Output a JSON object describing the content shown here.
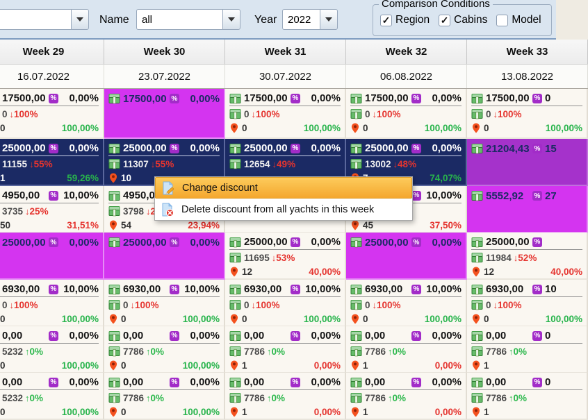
{
  "toolbar": {
    "filter_combo_value": "",
    "name_label": "Name",
    "name_value": "all",
    "year_label": "Year",
    "year_value": "2022",
    "comparison_group": {
      "title": "Comparison Conditions",
      "checkboxes": [
        {
          "label": "Region",
          "checked": true
        },
        {
          "label": "Cabins",
          "checked": true
        },
        {
          "label": "Model",
          "checked": false
        }
      ]
    }
  },
  "week_columns": [
    {
      "week": "Week 29",
      "date": "16.07.2022"
    },
    {
      "week": "Week 30",
      "date": "23.07.2022"
    },
    {
      "week": "Week 31",
      "date": "30.07.2022"
    },
    {
      "week": "Week 32",
      "date": "06.08.2022"
    },
    {
      "week": "Week 33",
      "date": "13.08.2022"
    }
  ],
  "context_menu": {
    "items": [
      {
        "label": "Change discount",
        "icon": "change-discount-icon",
        "highlighted": true
      },
      {
        "label": "Delete discount from all yachts in this week",
        "icon": "delete-discount-icon",
        "highlighted": false
      }
    ]
  },
  "colors": {
    "magenta_cell": "#D434F0",
    "selected_row_navy": "#1B2A64",
    "selected_magenta_cell": "#A532CB",
    "cell_bg": "#FAF7F1",
    "accent_green": "#28B44C",
    "accent_red": "#E5342F",
    "badge_purple": "#A22CC8",
    "menu_highlight": "#F4A72E",
    "toolbar_bg": "#DAE5F0"
  },
  "grid": {
    "rows": [
      {
        "cells": [
          {
            "v": "normal",
            "price": "17500,00",
            "pct": "0,00%",
            "l2": {
              "c": "0",
              "d": "down",
              "p": "100%"
            },
            "l3": {
              "c": "0",
              "p": "100,00%",
              "pc": "green"
            }
          },
          {
            "v": "magenta",
            "price": "17500,00",
            "pct": "0,00%"
          },
          {
            "v": "normal",
            "price": "17500,00",
            "pct": "0,00%",
            "l2": {
              "c": "0",
              "d": "down",
              "p": "100%"
            },
            "l3": {
              "c": "0",
              "p": "100,00%",
              "pc": "green"
            }
          },
          {
            "v": "normal",
            "price": "17500,00",
            "pct": "0,00%",
            "l2": {
              "c": "0",
              "d": "down",
              "p": "100%"
            },
            "l3": {
              "c": "0",
              "p": "100,00%",
              "pc": "green"
            }
          },
          {
            "v": "normal",
            "cut": true,
            "price": "17500,00",
            "pct": "0",
            "l2": {
              "c": "0",
              "d": "down",
              "p": "100%"
            },
            "l3": {
              "c": "0",
              "p": "100,00%",
              "pc": "green"
            }
          }
        ]
      },
      {
        "cells": [
          {
            "v": "navy",
            "price": "25000,00",
            "pct": "0,00%",
            "l2": {
              "c": "11155",
              "d": "down",
              "p": "55%"
            },
            "l3": {
              "c": "1",
              "p": "59,26%",
              "pc": "green"
            }
          },
          {
            "v": "navy",
            "price": "25000,00",
            "pct": "0,00%",
            "l2": {
              "c": "11307",
              "d": "down",
              "p": "55%"
            },
            "l3": {
              "c": "10",
              "p": "",
              "pc": "green"
            }
          },
          {
            "v": "navy",
            "price": "25000,00",
            "pct": "0,00%",
            "l2": {
              "c": "12654",
              "d": "down",
              "p": "49%"
            }
          },
          {
            "v": "navy",
            "price": "25000,00",
            "pct": "0,00%",
            "l2": {
              "c": "13002",
              "d": "down",
              "p": "48%"
            },
            "l3": {
              "c": "7",
              "p": "74,07%",
              "pc": "green"
            }
          },
          {
            "v": "violet",
            "cut": true,
            "price": "21204,43",
            "pct": "15"
          }
        ]
      },
      {
        "cells": [
          {
            "v": "normal",
            "price": "4950,00",
            "pct": "10,00%",
            "l2": {
              "c": "3735",
              "d": "down",
              "p": "25%"
            },
            "l3": {
              "c": "50",
              "p": "31,51%",
              "pc": "red"
            }
          },
          {
            "v": "normal",
            "price": "4950,00",
            "pct": "",
            "l2": {
              "c": "3798",
              "d": "down",
              "p": "2"
            },
            "l3": {
              "c": "54",
              "p": "23,94%",
              "pc": "red"
            }
          },
          {
            "v": "normal",
            "price": "",
            "pct": ""
          },
          {
            "v": "normal",
            "price": "",
            "pct": "10,00%",
            "l3": {
              "c": "45",
              "p": "37,50%",
              "pc": "red"
            }
          },
          {
            "v": "magenta",
            "cut": true,
            "price": "5552,92",
            "pct": "27"
          }
        ]
      },
      {
        "cells": [
          {
            "v": "magenta",
            "price": "25000,00",
            "pct": "0,00%"
          },
          {
            "v": "magenta",
            "price": "25000,00",
            "pct": "0,00%"
          },
          {
            "v": "normal",
            "price": "25000,00",
            "pct": "0,00%",
            "l2": {
              "c": "11695",
              "d": "down",
              "p": "53%"
            },
            "l3": {
              "c": "12",
              "p": "40,00%",
              "pc": "red"
            }
          },
          {
            "v": "magenta",
            "price": "25000,00",
            "pct": "0,00%"
          },
          {
            "v": "normal",
            "cut": true,
            "price": "25000,00",
            "pct": "",
            "l2": {
              "c": "11984",
              "d": "down",
              "p": "52%"
            },
            "l3": {
              "c": "12",
              "p": "40,00%",
              "pc": "red"
            }
          }
        ]
      },
      {
        "cells": [
          {
            "v": "normal",
            "price": "6930,00",
            "pct": "10,00%",
            "l2": {
              "c": "0",
              "d": "down",
              "p": "100%"
            },
            "l3": {
              "c": "0",
              "p": "100,00%",
              "pc": "green"
            }
          },
          {
            "v": "normal",
            "price": "6930,00",
            "pct": "10,00%",
            "l2": {
              "c": "0",
              "d": "down",
              "p": "100%"
            },
            "l3": {
              "c": "0",
              "p": "100,00%",
              "pc": "green"
            }
          },
          {
            "v": "normal",
            "price": "6930,00",
            "pct": "10,00%",
            "l2": {
              "c": "0",
              "d": "down",
              "p": "100%"
            },
            "l3": {
              "c": "0",
              "p": "100,00%",
              "pc": "green"
            }
          },
          {
            "v": "normal",
            "price": "6930,00",
            "pct": "10,00%",
            "l2": {
              "c": "0",
              "d": "down",
              "p": "100%"
            },
            "l3": {
              "c": "0",
              "p": "100,00%",
              "pc": "green"
            }
          },
          {
            "v": "normal",
            "cut": true,
            "price": "6930,00",
            "pct": "10",
            "l2": {
              "c": "0",
              "d": "down",
              "p": "100%"
            },
            "l3": {
              "c": "0",
              "p": "100,00%",
              "pc": "green"
            }
          }
        ]
      },
      {
        "cells": [
          {
            "v": "normal",
            "price": "0,00",
            "pct": "0,00%",
            "l2": {
              "c": "5232",
              "d": "up",
              "p": "0%"
            },
            "l3": {
              "c": "0",
              "p": "100,00%",
              "pc": "green"
            }
          },
          {
            "v": "normal",
            "price": "0,00",
            "pct": "0,00%",
            "l2": {
              "c": "7786",
              "d": "up",
              "p": "0%"
            },
            "l3": {
              "c": "0",
              "p": "100,00%",
              "pc": "green"
            }
          },
          {
            "v": "normal",
            "price": "0,00",
            "pct": "0,00%",
            "l2": {
              "c": "7786",
              "d": "up",
              "p": "0%"
            },
            "l3": {
              "c": "1",
              "p": "0,00%",
              "pc": "red"
            }
          },
          {
            "v": "normal",
            "price": "0,00",
            "pct": "0,00%",
            "l2": {
              "c": "7786",
              "d": "up",
              "p": "0%"
            },
            "l3": {
              "c": "1",
              "p": "0,00%",
              "pc": "red"
            }
          },
          {
            "v": "normal",
            "cut": true,
            "price": "0,00",
            "pct": "0",
            "l2": {
              "c": "7786",
              "d": "up",
              "p": "0%"
            },
            "l3": {
              "c": "1",
              "p": "",
              "pc": "red"
            }
          }
        ]
      },
      {
        "cells": [
          {
            "v": "normal",
            "price": "0,00",
            "pct": "0,00%",
            "l2": {
              "c": "5232",
              "d": "up",
              "p": "0%"
            },
            "l3": {
              "c": "0",
              "p": "100,00%",
              "pc": "green"
            }
          },
          {
            "v": "normal",
            "price": "0,00",
            "pct": "0,00%",
            "l2": {
              "c": "7786",
              "d": "up",
              "p": "0%"
            },
            "l3": {
              "c": "0",
              "p": "100,00%",
              "pc": "green"
            }
          },
          {
            "v": "normal",
            "price": "0,00",
            "pct": "0,00%",
            "l2": {
              "c": "7786",
              "d": "up",
              "p": "0%"
            },
            "l3": {
              "c": "1",
              "p": "0,00%",
              "pc": "red"
            }
          },
          {
            "v": "normal",
            "price": "0,00",
            "pct": "0,00%",
            "l2": {
              "c": "7786",
              "d": "up",
              "p": "0%"
            },
            "l3": {
              "c": "1",
              "p": "0,00%",
              "pc": "red"
            }
          },
          {
            "v": "normal",
            "cut": true,
            "price": "0,00",
            "pct": "0",
            "l2": {
              "c": "7786",
              "d": "up",
              "p": "0%"
            },
            "l3": {
              "c": "1",
              "p": "",
              "pc": "red"
            }
          }
        ]
      }
    ]
  }
}
